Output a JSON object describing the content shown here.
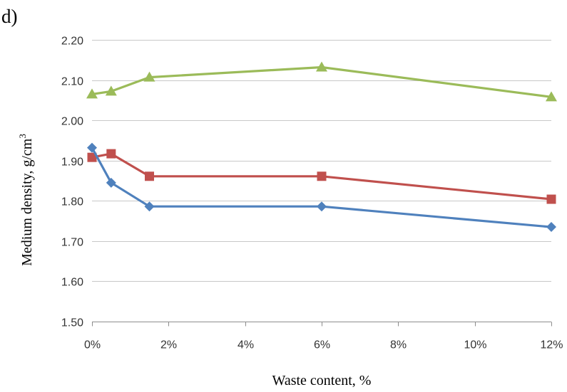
{
  "panel_label": "d)",
  "chart_data": {
    "type": "line",
    "xlabel": "Waste content, %",
    "ylabel": "Medium density, g/cm",
    "ylabel_superscript": "3",
    "xlim": [
      0,
      12
    ],
    "ylim": [
      1.5,
      2.2
    ],
    "x_ticks": [
      0,
      2,
      4,
      6,
      8,
      10,
      12
    ],
    "x_tick_labels": [
      "0%",
      "2%",
      "4%",
      "6%",
      "8%",
      "10%",
      "12%"
    ],
    "y_ticks": [
      1.5,
      1.6,
      1.7,
      1.8,
      1.9,
      2.0,
      2.1,
      2.2
    ],
    "y_tick_labels": [
      "1.50",
      "1.60",
      "1.70",
      "1.80",
      "1.90",
      "2.00",
      "2.10",
      "2.20"
    ],
    "grid": true,
    "x": [
      0,
      0.5,
      1.5,
      6,
      12
    ],
    "series": [
      {
        "marker": "triangle",
        "color": "#9bbb59",
        "values": [
          2.065,
          2.072,
          2.107,
          2.132,
          2.058
        ]
      },
      {
        "marker": "square",
        "color": "#c0504d",
        "values": [
          1.908,
          1.917,
          1.861,
          1.861,
          1.804
        ]
      },
      {
        "marker": "diamond",
        "color": "#4f81bd",
        "values": [
          1.932,
          1.845,
          1.786,
          1.786,
          1.735
        ]
      }
    ]
  }
}
